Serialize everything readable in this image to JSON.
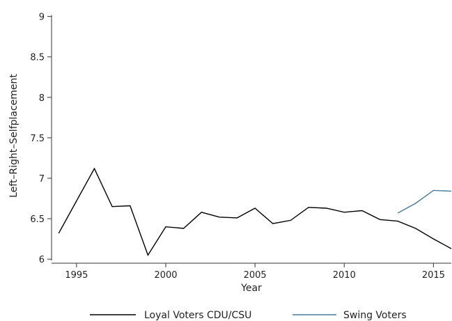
{
  "chart_data": {
    "type": "line",
    "xlabel": "Year",
    "ylabel": "Left–Right–Selfplacement",
    "xlim": [
      1993.6,
      2016
    ],
    "ylim": [
      5.95,
      9.1
    ],
    "xticks": [
      "1995",
      "2000",
      "2005",
      "2010",
      "2015"
    ],
    "yticks": [
      "6",
      "6.5",
      "7",
      "7.5",
      "8",
      "8.5",
      "9"
    ],
    "grid": false,
    "legend_position": "bottom",
    "series": [
      {
        "name": "Loyal Voters CDU/CSU",
        "color": "#000000",
        "points": [
          [
            1994,
            6.32
          ],
          [
            1995,
            6.72
          ],
          [
            1996,
            7.12
          ],
          [
            1997,
            6.65
          ],
          [
            1998,
            6.66
          ],
          [
            1999,
            6.05
          ],
          [
            2000,
            6.4
          ],
          [
            2001,
            6.38
          ],
          [
            2002,
            6.58
          ],
          [
            2003,
            6.52
          ],
          [
            2004,
            6.51
          ],
          [
            2005,
            6.63
          ],
          [
            2006,
            6.44
          ],
          [
            2007,
            6.48
          ],
          [
            2008,
            6.64
          ],
          [
            2009,
            6.63
          ],
          [
            2010,
            6.58
          ],
          [
            2011,
            6.6
          ],
          [
            2012,
            6.49
          ],
          [
            2013,
            6.47
          ],
          [
            2014,
            6.38
          ],
          [
            2015,
            6.25
          ],
          [
            2016,
            6.13
          ]
        ]
      },
      {
        "name": "Swing Voters",
        "color": "#4a7a9b",
        "points": [
          [
            2013,
            6.57
          ],
          [
            2014,
            6.69
          ],
          [
            2015,
            6.85
          ],
          [
            2016,
            6.84
          ]
        ]
      }
    ]
  }
}
